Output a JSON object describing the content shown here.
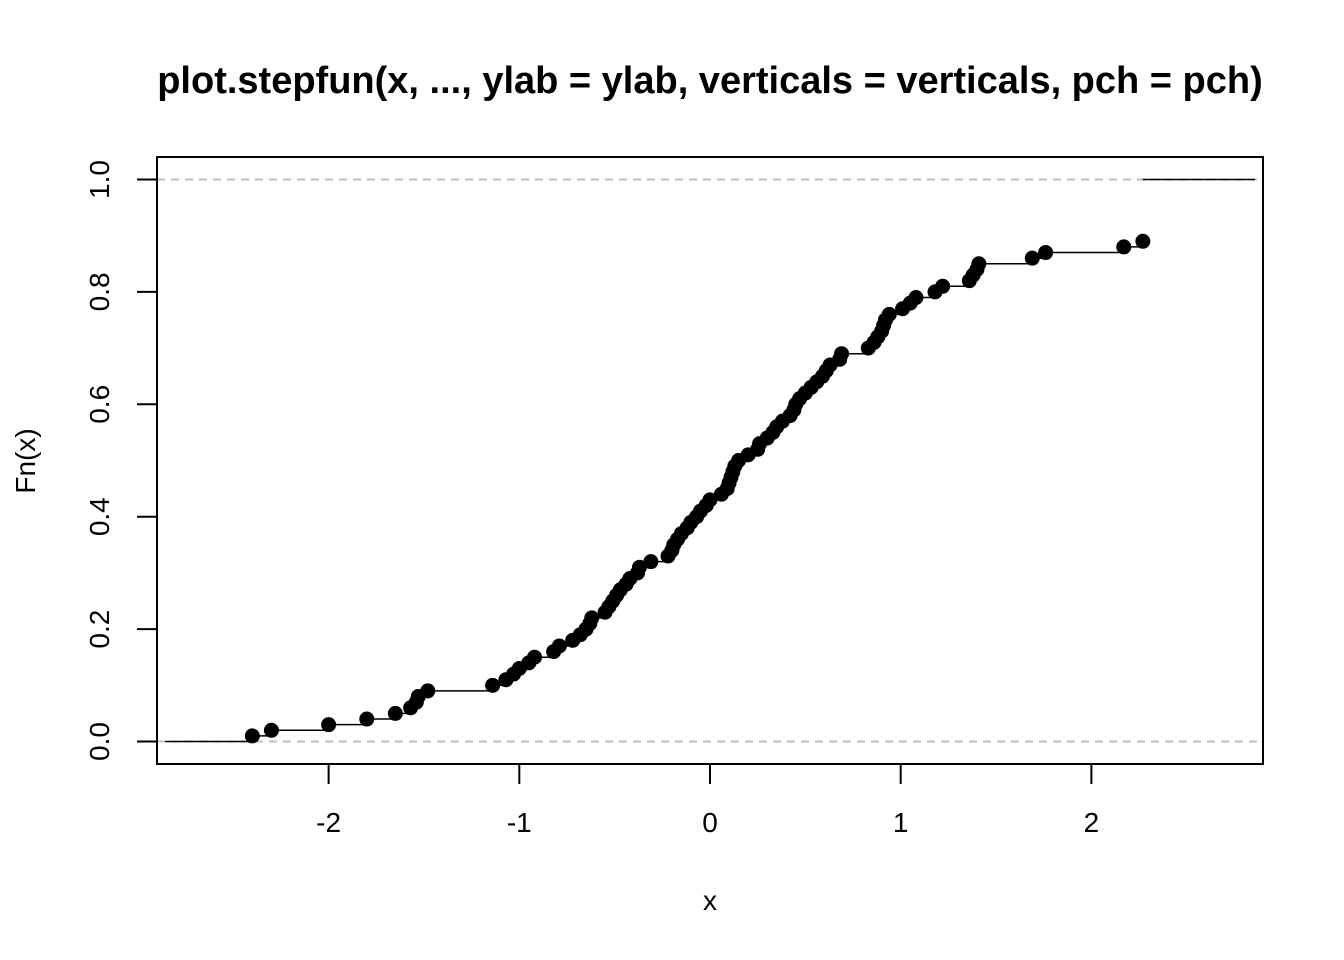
{
  "chart_data": {
    "type": "scatter",
    "title": "plot.stepfun(x, ..., ylab = ylab, verticals = verticals, pch = pch)",
    "xlabel": "x",
    "ylabel": "Fn(x)",
    "xlim": [
      -2.9,
      2.9
    ],
    "ylim": [
      -0.04,
      1.04
    ],
    "x_ticks": [
      -2,
      -1,
      0,
      1,
      2
    ],
    "x_tick_labels": [
      "-2",
      "-1",
      "0",
      "1",
      "2"
    ],
    "y_ticks": [
      0.0,
      0.2,
      0.4,
      0.6,
      0.8,
      1.0
    ],
    "y_tick_labels": [
      "0.0",
      "0.2",
      "0.4",
      "0.6",
      "0.8",
      "1.0"
    ],
    "reference_lines": [
      0,
      1
    ],
    "verticals": false,
    "series": [
      {
        "x": [
          -2.4,
          -2.3,
          -2.0,
          -1.8,
          -1.65,
          -1.57,
          -1.54,
          -1.53,
          -1.48,
          -1.14,
          -1.07,
          -1.03,
          -1.0,
          -0.95,
          -0.92,
          -0.82,
          -0.79,
          -0.72,
          -0.68,
          -0.65,
          -0.63,
          -0.62,
          -0.55,
          -0.53,
          -0.51,
          -0.49,
          -0.47,
          -0.44,
          -0.42,
          -0.38,
          -0.37,
          -0.31,
          -0.22,
          -0.2,
          -0.19,
          -0.17,
          -0.15,
          -0.12,
          -0.1,
          -0.07,
          -0.05,
          -0.02,
          0.0,
          0.06,
          0.09,
          0.1,
          0.11,
          0.12,
          0.13,
          0.15,
          0.2,
          0.25,
          0.26,
          0.3,
          0.33,
          0.35,
          0.38,
          0.42,
          0.44,
          0.45,
          0.47,
          0.5,
          0.53,
          0.56,
          0.59,
          0.61,
          0.63,
          0.68,
          0.69,
          0.83,
          0.86,
          0.88,
          0.9,
          0.91,
          0.92,
          0.94,
          1.01,
          1.05,
          1.08,
          1.18,
          1.22,
          1.36,
          1.38,
          1.4,
          1.41,
          1.69,
          1.76,
          2.17,
          2.27
        ],
        "y": [
          0.01,
          0.02,
          0.03,
          0.04,
          0.05,
          0.06,
          0.07,
          0.08,
          0.09,
          0.1,
          0.11,
          0.12,
          0.13,
          0.14,
          0.15,
          0.16,
          0.17,
          0.18,
          0.19,
          0.2,
          0.21,
          0.22,
          0.23,
          0.24,
          0.25,
          0.26,
          0.27,
          0.28,
          0.29,
          0.3,
          0.31,
          0.32,
          0.33,
          0.34,
          0.35,
          0.36,
          0.37,
          0.38,
          0.39,
          0.4,
          0.41,
          0.42,
          0.43,
          0.44,
          0.45,
          0.46,
          0.47,
          0.48,
          0.49,
          0.5,
          0.51,
          0.52,
          0.53,
          0.54,
          0.55,
          0.56,
          0.57,
          0.58,
          0.59,
          0.6,
          0.61,
          0.62,
          0.63,
          0.64,
          0.65,
          0.66,
          0.67,
          0.68,
          0.69,
          0.7,
          0.71,
          0.72,
          0.73,
          0.74,
          0.75,
          0.76,
          0.77,
          0.78,
          0.79,
          0.8,
          0.81,
          0.82,
          0.83,
          0.84,
          0.85,
          0.86,
          0.87,
          0.88,
          0.89
        ]
      }
    ]
  }
}
